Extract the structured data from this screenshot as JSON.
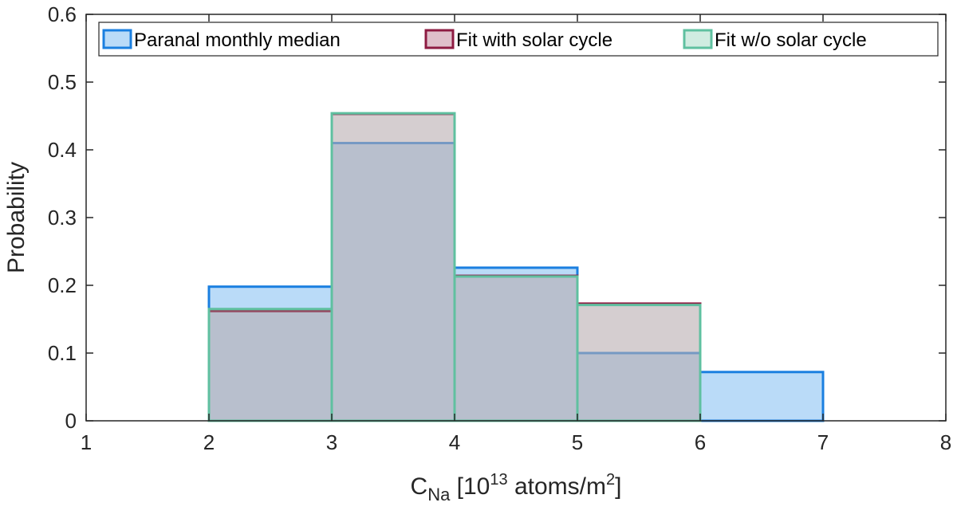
{
  "chart_data": {
    "type": "bar",
    "title": "",
    "xlabel": {
      "base": "C",
      "subscript": "Na",
      "pre_exponent": " [10",
      "exponent": "13",
      "post_exponent": " atoms/m",
      "exponent2": "2",
      "closing": "]"
    },
    "ylabel": "Probability",
    "xlim": [
      1,
      8
    ],
    "ylim": [
      0,
      0.6
    ],
    "xticks": [
      1,
      2,
      3,
      4,
      5,
      6,
      7,
      8
    ],
    "xtick_labels": [
      "1",
      "2",
      "3",
      "4",
      "5",
      "6",
      "7",
      "8"
    ],
    "yticks": [
      0,
      0.1,
      0.2,
      0.3,
      0.4,
      0.5,
      0.6
    ],
    "ytick_labels": [
      "0",
      "0.1",
      "0.2",
      "0.3",
      "0.4",
      "0.5",
      "0.6"
    ],
    "bin_edges": [
      1,
      2,
      3,
      4,
      5,
      6,
      7,
      8
    ],
    "grid": false,
    "legend_position": "top",
    "series": [
      {
        "name": "Paranal monthly median",
        "values": [
          0,
          0.198,
          0.41,
          0.226,
          0.1,
          0.072,
          0
        ],
        "fill": "#b3d7f7",
        "edge": "#1a7fe0",
        "fill_opacity": 0.9
      },
      {
        "name": "Fit with solar cycle",
        "values": [
          0,
          0.162,
          0.453,
          0.214,
          0.173,
          0,
          0
        ],
        "fill": "#c48a9e",
        "edge": "#8e1b42",
        "fill_opacity": 0.45
      },
      {
        "name": "Fit w/o solar cycle",
        "values": [
          0,
          0.165,
          0.454,
          0.213,
          0.171,
          0,
          0
        ],
        "fill": "#a9dcc8",
        "edge": "#5fc0a0",
        "fill_opacity": 0.25
      }
    ]
  }
}
